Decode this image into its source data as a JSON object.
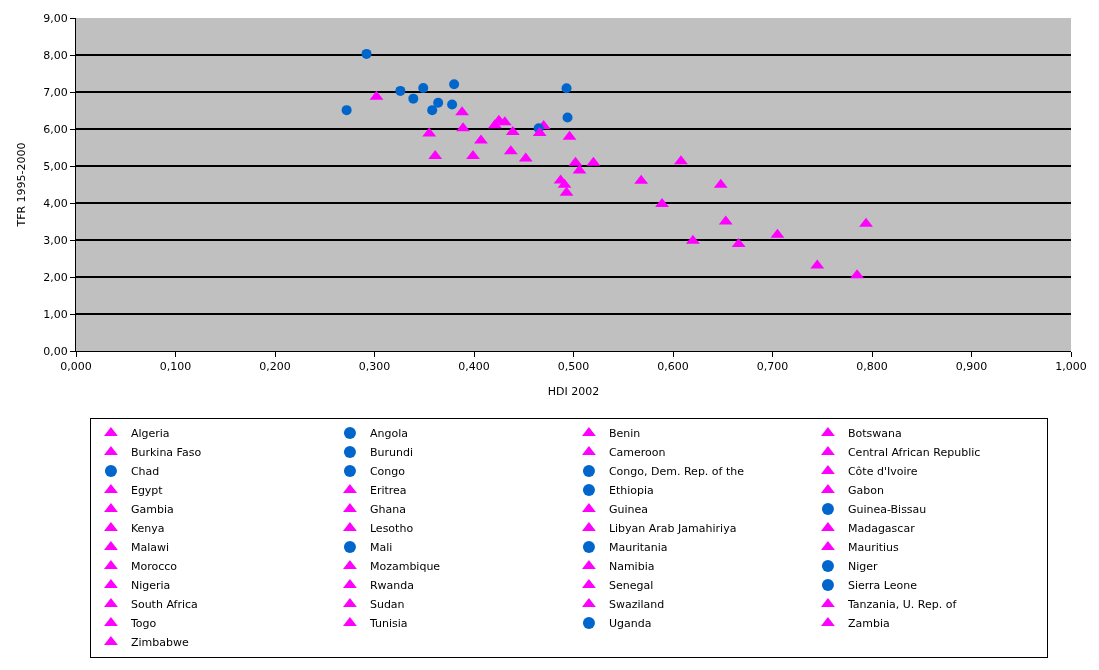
{
  "chart_data": {
    "type": "scatter",
    "xlabel": "HDI 2002",
    "ylabel": "TFR 1995-2000",
    "xlim": [
      0,
      1
    ],
    "xticks": [
      {
        "value": 0,
        "label": "0,000"
      },
      {
        "value": 0.1,
        "label": "0,100"
      },
      {
        "value": 0.2,
        "label": "0,200"
      },
      {
        "value": 0.3,
        "label": "0,300"
      },
      {
        "value": 0.4,
        "label": "0,400"
      },
      {
        "value": 0.5,
        "label": "0,500"
      },
      {
        "value": 0.6,
        "label": "0,600"
      },
      {
        "value": 0.7,
        "label": "0,700"
      },
      {
        "value": 0.8,
        "label": "0,800"
      },
      {
        "value": 0.9,
        "label": "0,900"
      },
      {
        "value": 1,
        "label": "1,000"
      }
    ],
    "ylim": [
      0,
      9
    ],
    "yticks": [
      {
        "value": 0,
        "label": "0,00"
      },
      {
        "value": 1,
        "label": "1,00"
      },
      {
        "value": 2,
        "label": "2,00"
      },
      {
        "value": 3,
        "label": "3,00"
      },
      {
        "value": 4,
        "label": "4,00"
      },
      {
        "value": 5,
        "label": "5,00"
      },
      {
        "value": 6,
        "label": "6,00"
      },
      {
        "value": 7,
        "label": "7,00"
      },
      {
        "value": 8,
        "label": "8,00"
      },
      {
        "value": 9,
        "label": "9,00"
      }
    ],
    "grid": "y",
    "legend": "bottom",
    "series": [
      {
        "name": "Algeria",
        "color": "#ff00ff",
        "marker": "triangle",
        "x": [
          0.705
        ],
        "values": [
          3.14
        ]
      },
      {
        "name": "Angola",
        "color": "#0066cc",
        "marker": "circle",
        "x": [
          0.38
        ],
        "values": [
          7.21
        ]
      },
      {
        "name": "Benin",
        "color": "#ff00ff",
        "marker": "triangle",
        "x": [
          0.421
        ],
        "values": [
          6.1
        ]
      },
      {
        "name": "Botswana",
        "color": "#ff00ff",
        "marker": "triangle",
        "x": [
          0.589
        ],
        "values": [
          3.97
        ]
      },
      {
        "name": "Burkina Faso",
        "color": "#ff00ff",
        "marker": "triangle",
        "x": [
          0.302
        ],
        "values": [
          6.87
        ]
      },
      {
        "name": "Burundi",
        "color": "#0066cc",
        "marker": "circle",
        "x": [
          0.339
        ],
        "values": [
          6.82
        ]
      },
      {
        "name": "Cameroon",
        "color": "#ff00ff",
        "marker": "triangle",
        "x": [
          0.502
        ],
        "values": [
          5.09
        ]
      },
      {
        "name": "Central African Republic",
        "color": "#ff00ff",
        "marker": "triangle",
        "x": [
          0.361
        ],
        "values": [
          5.27
        ]
      },
      {
        "name": "Chad",
        "color": "#0066cc",
        "marker": "circle",
        "x": [
          0.378
        ],
        "values": [
          6.66
        ]
      },
      {
        "name": "Congo",
        "color": "#0066cc",
        "marker": "circle",
        "x": [
          0.494
        ],
        "values": [
          6.31
        ]
      },
      {
        "name": "Congo, Dem. Rep. of the",
        "color": "#0066cc",
        "marker": "circle",
        "x": [
          0.364
        ],
        "values": [
          6.71
        ]
      },
      {
        "name": "Côte d'Ivoire",
        "color": "#ff00ff",
        "marker": "triangle",
        "x": [
          0.399
        ],
        "values": [
          5.27
        ]
      },
      {
        "name": "Egypt",
        "color": "#ff00ff",
        "marker": "triangle",
        "x": [
          0.653
        ],
        "values": [
          3.5
        ]
      },
      {
        "name": "Eritrea",
        "color": "#ff00ff",
        "marker": "triangle",
        "x": [
          0.439
        ],
        "values": [
          5.92
        ]
      },
      {
        "name": "Ethiopia",
        "color": "#0066cc",
        "marker": "circle",
        "x": [
          0.358
        ],
        "values": [
          6.51
        ]
      },
      {
        "name": "Gabon",
        "color": "#ff00ff",
        "marker": "triangle",
        "x": [
          0.648
        ],
        "values": [
          4.49
        ]
      },
      {
        "name": "Gambia",
        "color": "#ff00ff",
        "marker": "triangle",
        "x": [
          0.452
        ],
        "values": [
          5.2
        ]
      },
      {
        "name": "Ghana",
        "color": "#ff00ff",
        "marker": "triangle",
        "x": [
          0.568
        ],
        "values": [
          4.6
        ]
      },
      {
        "name": "Guinea",
        "color": "#ff00ff",
        "marker": "triangle",
        "x": [
          0.425
        ],
        "values": [
          6.22
        ]
      },
      {
        "name": "Guinea-Bissau",
        "color": "#0066cc",
        "marker": "circle",
        "x": [
          0.349
        ],
        "values": [
          7.11
        ]
      },
      {
        "name": "Kenya",
        "color": "#ff00ff",
        "marker": "triangle",
        "x": [
          0.487
        ],
        "values": [
          4.61
        ]
      },
      {
        "name": "Lesotho",
        "color": "#ff00ff",
        "marker": "triangle",
        "x": [
          0.493
        ],
        "values": [
          4.28
        ]
      },
      {
        "name": "Libyan Arab Jamahiriya",
        "color": "#ff00ff",
        "marker": "triangle",
        "x": [
          0.794
        ],
        "values": [
          3.44
        ]
      },
      {
        "name": "Madagascar",
        "color": "#ff00ff",
        "marker": "triangle",
        "x": [
          0.47
        ],
        "values": [
          6.08
        ]
      },
      {
        "name": "Malawi",
        "color": "#ff00ff",
        "marker": "triangle",
        "x": [
          0.388
        ],
        "values": [
          6.45
        ]
      },
      {
        "name": "Mali",
        "color": "#0066cc",
        "marker": "circle",
        "x": [
          0.326
        ],
        "values": [
          7.03
        ]
      },
      {
        "name": "Mauritania",
        "color": "#0066cc",
        "marker": "circle",
        "x": [
          0.465
        ],
        "values": [
          6.02
        ]
      },
      {
        "name": "Mauritius",
        "color": "#ff00ff",
        "marker": "triangle",
        "x": [
          0.785
        ],
        "values": [
          2.05
        ]
      },
      {
        "name": "Morocco",
        "color": "#ff00ff",
        "marker": "triangle",
        "x": [
          0.62
        ],
        "values": [
          2.98
        ]
      },
      {
        "name": "Mozambique",
        "color": "#ff00ff",
        "marker": "triangle",
        "x": [
          0.355
        ],
        "values": [
          5.88
        ]
      },
      {
        "name": "Namibia",
        "color": "#ff00ff",
        "marker": "triangle",
        "x": [
          0.608
        ],
        "values": [
          5.13
        ]
      },
      {
        "name": "Niger",
        "color": "#0066cc",
        "marker": "circle",
        "x": [
          0.292
        ],
        "values": [
          8.03
        ]
      },
      {
        "name": "Nigeria",
        "color": "#ff00ff",
        "marker": "triangle",
        "x": [
          0.466
        ],
        "values": [
          5.89
        ]
      },
      {
        "name": "Rwanda",
        "color": "#ff00ff",
        "marker": "triangle",
        "x": [
          0.431
        ],
        "values": [
          6.18
        ]
      },
      {
        "name": "Senegal",
        "color": "#ff00ff",
        "marker": "triangle",
        "x": [
          0.437
        ],
        "values": [
          5.4
        ]
      },
      {
        "name": "Sierra Leone",
        "color": "#0066cc",
        "marker": "circle",
        "x": [
          0.272
        ],
        "values": [
          6.51
        ]
      },
      {
        "name": "South Africa",
        "color": "#ff00ff",
        "marker": "triangle",
        "x": [
          0.666
        ],
        "values": [
          2.89
        ]
      },
      {
        "name": "Sudan",
        "color": "#ff00ff",
        "marker": "triangle",
        "x": [
          0.506
        ],
        "values": [
          4.88
        ]
      },
      {
        "name": "Swaziland",
        "color": "#ff00ff",
        "marker": "triangle",
        "x": [
          0.52
        ],
        "values": [
          5.09
        ]
      },
      {
        "name": "Tanzania, U. Rep. of",
        "color": "#ff00ff",
        "marker": "triangle",
        "x": [
          0.407
        ],
        "values": [
          5.69
        ]
      },
      {
        "name": "Togo",
        "color": "#ff00ff",
        "marker": "triangle",
        "x": [
          0.496
        ],
        "values": [
          5.79
        ]
      },
      {
        "name": "Tunisia",
        "color": "#ff00ff",
        "marker": "triangle",
        "x": [
          0.745
        ],
        "values": [
          2.31
        ]
      },
      {
        "name": "Uganda",
        "color": "#0066cc",
        "marker": "circle",
        "x": [
          0.493
        ],
        "values": [
          7.1
        ]
      },
      {
        "name": "Zambia",
        "color": "#ff00ff",
        "marker": "triangle",
        "x": [
          0.389
        ],
        "values": [
          6.02
        ]
      },
      {
        "name": "Zimbabwe",
        "color": "#ff00ff",
        "marker": "triangle",
        "x": [
          0.491
        ],
        "values": [
          4.49
        ]
      }
    ]
  }
}
